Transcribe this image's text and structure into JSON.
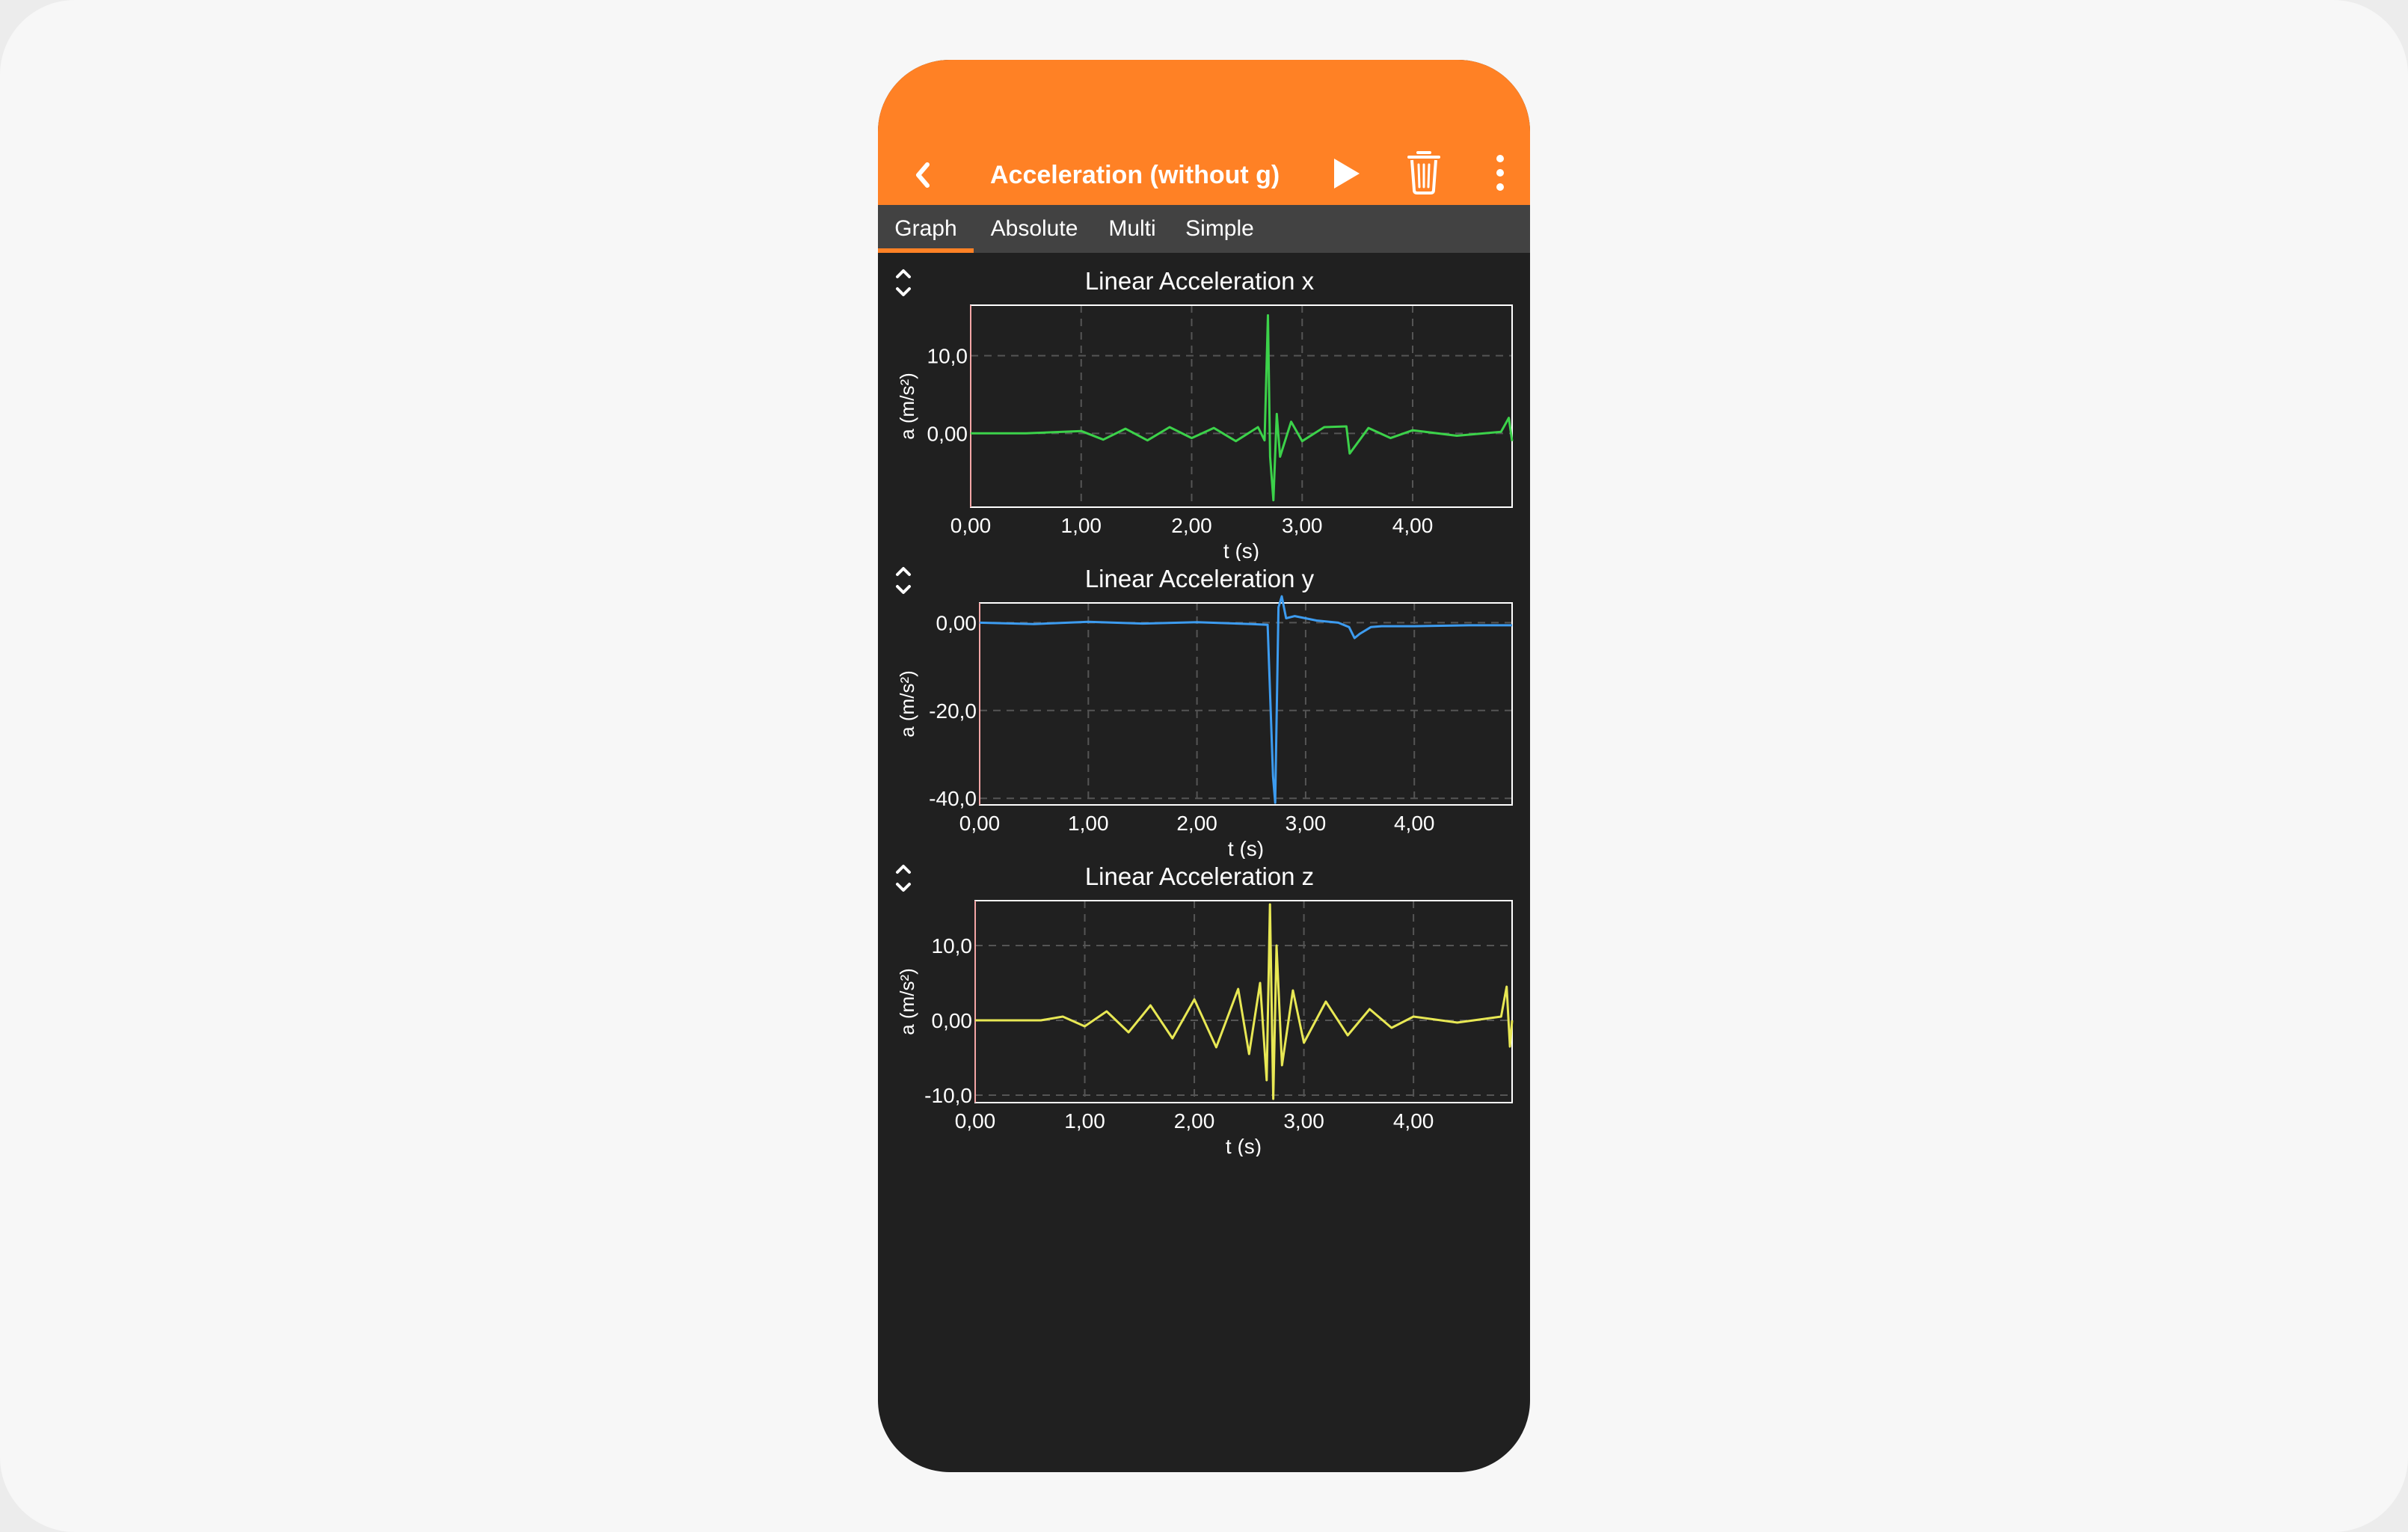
{
  "header": {
    "title": "Acceleration (without g)",
    "background": "#ff8125",
    "back_icon": "chevron-left-icon",
    "play_icon": "play-icon",
    "trash_icon": "trash-icon",
    "more_icon": "more-vertical-icon"
  },
  "tabs": [
    {
      "label": "Graph",
      "active": true
    },
    {
      "label": "Absolute",
      "active": false
    },
    {
      "label": "Multi",
      "active": false
    },
    {
      "label": "Simple",
      "active": false
    }
  ],
  "chart_data": [
    {
      "type": "line",
      "title": "Linear Acceleration x",
      "xlabel": "t (s)",
      "ylabel": "a (m/s²)",
      "color": "#3cd24a",
      "xlim": [
        0,
        4.9
      ],
      "ylim": [
        -9.5,
        16.5
      ],
      "xticks": [
        "0,00",
        "1,00",
        "2,00",
        "3,00",
        "4,00"
      ],
      "xtick_values": [
        0,
        1,
        2,
        3,
        4
      ],
      "yticks": [
        "10,0",
        "0,00"
      ],
      "ytick_values": [
        10,
        0
      ],
      "x": [
        0.0,
        0.5,
        1.0,
        1.2,
        1.4,
        1.6,
        1.8,
        2.0,
        2.2,
        2.4,
        2.6,
        2.66,
        2.69,
        2.71,
        2.74,
        2.77,
        2.8,
        2.9,
        3.0,
        3.2,
        3.4,
        3.43,
        3.6,
        3.8,
        4.0,
        4.4,
        4.8,
        4.87,
        4.9
      ],
      "y": [
        0.0,
        0.0,
        0.3,
        -0.8,
        0.6,
        -0.9,
        0.8,
        -0.6,
        0.7,
        -1.0,
        0.8,
        -0.9,
        15.2,
        -3.0,
        -8.6,
        2.5,
        -3.0,
        1.5,
        -1.0,
        0.8,
        0.9,
        -2.6,
        0.7,
        -0.6,
        0.4,
        -0.3,
        0.2,
        2.0,
        -1.0
      ]
    },
    {
      "type": "line",
      "title": "Linear Acceleration y",
      "xlabel": "t (s)",
      "ylabel": "a (m/s²)",
      "color": "#3d9cf0",
      "xlim": [
        0,
        4.9
      ],
      "ylim": [
        -41.5,
        4.5
      ],
      "xticks": [
        "0,00",
        "1,00",
        "2,00",
        "3,00",
        "4,00"
      ],
      "xtick_values": [
        0,
        1,
        2,
        3,
        4
      ],
      "yticks": [
        "0,00",
        "-20,0",
        "-40,0"
      ],
      "ytick_values": [
        0,
        -20,
        -40
      ],
      "x": [
        0.0,
        0.5,
        1.0,
        1.5,
        2.0,
        2.5,
        2.65,
        2.7,
        2.72,
        2.75,
        2.78,
        2.82,
        2.9,
        3.1,
        3.3,
        3.4,
        3.45,
        3.5,
        3.6,
        3.7,
        4.0,
        4.5,
        4.9
      ],
      "y": [
        0.0,
        -0.3,
        0.2,
        -0.2,
        0.1,
        -0.3,
        -0.5,
        -35.0,
        -41.0,
        3.5,
        6.0,
        1.0,
        1.5,
        0.5,
        0.0,
        -1.0,
        -3.5,
        -2.5,
        -1.0,
        -0.8,
        -0.8,
        -0.6,
        -0.6
      ]
    },
    {
      "type": "line",
      "title": "Linear Acceleration z",
      "xlabel": "t (s)",
      "ylabel": "a (m/s²)",
      "color": "#e8e854",
      "xlim": [
        0,
        4.9
      ],
      "ylim": [
        -11,
        16
      ],
      "xticks": [
        "0,00",
        "1,00",
        "2,00",
        "3,00",
        "4,00"
      ],
      "xtick_values": [
        0,
        1,
        2,
        3,
        4
      ],
      "yticks": [
        "10,0",
        "0,00",
        "-10,0"
      ],
      "ytick_values": [
        10,
        0,
        -10
      ],
      "x": [
        0.0,
        0.6,
        0.8,
        1.0,
        1.2,
        1.4,
        1.6,
        1.8,
        2.0,
        2.2,
        2.4,
        2.5,
        2.6,
        2.66,
        2.69,
        2.72,
        2.75,
        2.8,
        2.9,
        3.0,
        3.2,
        3.4,
        3.6,
        3.8,
        4.0,
        4.4,
        4.8,
        4.85,
        4.88,
        4.9
      ],
      "y": [
        0.0,
        0.0,
        0.5,
        -0.8,
        1.2,
        -1.6,
        2.0,
        -2.4,
        2.8,
        -3.6,
        4.2,
        -4.5,
        5.0,
        -8.0,
        15.5,
        -10.5,
        10.0,
        -6.0,
        4.0,
        -3.0,
        2.5,
        -2.0,
        1.5,
        -1.0,
        0.5,
        -0.3,
        0.5,
        4.5,
        -3.5,
        0.0
      ]
    }
  ]
}
